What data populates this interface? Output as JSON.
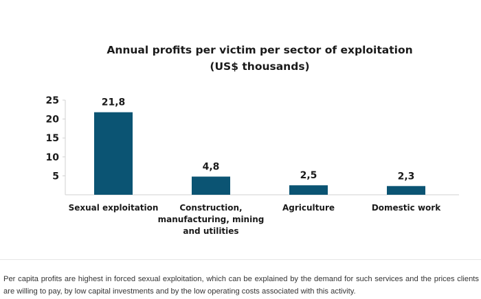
{
  "chart_data": {
    "type": "bar",
    "title_lines": [
      "Annual profits per victim per sector of exploitation",
      "(US$ thousands)"
    ],
    "categories": [
      [
        "Sexual exploitation"
      ],
      [
        "Construction,",
        "manufacturing, mining",
        "and utilities"
      ],
      [
        "Agriculture"
      ],
      [
        "Domestic work"
      ]
    ],
    "values": [
      21.8,
      4.8,
      2.5,
      2.3
    ],
    "value_labels": [
      "21,8",
      "4,8",
      "2,5",
      "2,3"
    ],
    "ylim": [
      0,
      25
    ],
    "yticks": [
      {
        "value": 5,
        "label": "5"
      },
      {
        "value": 10,
        "label": "10"
      },
      {
        "value": 15,
        "label": "15"
      },
      {
        "value": 20,
        "label": "20"
      },
      {
        "value": 25,
        "label": "25"
      }
    ],
    "xlabel": "",
    "ylabel": "",
    "grid": false,
    "bar_color": "#0b5473"
  },
  "caption": "Per capita profits are highest in forced sexual exploitation, which can be explained by the demand for such services and the prices clients are willing to pay, by low capital investments and by the low operating costs associated with this activity."
}
